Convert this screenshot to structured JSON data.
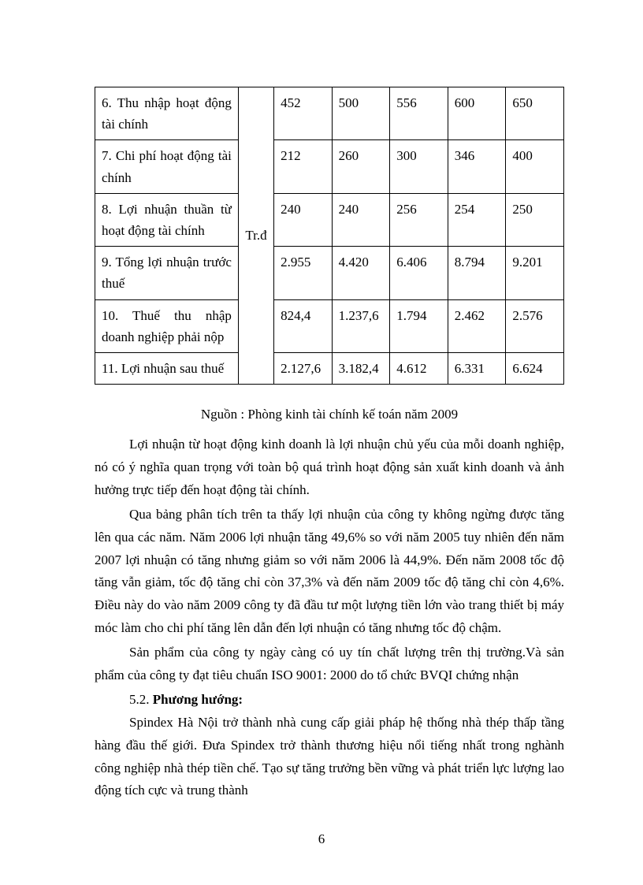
{
  "table": {
    "unit": "Tr.đ",
    "rows": [
      {
        "label": "6. Thu nhập hoạt động tài chính",
        "values": [
          "452",
          "500",
          "556",
          "600",
          "650"
        ]
      },
      {
        "label": "7. Chi phí hoạt động tài chính",
        "values": [
          "212",
          "260",
          "300",
          "346",
          "400"
        ]
      },
      {
        "label": "8. Lợi nhuận thuần từ hoạt động tài chính",
        "values": [
          "240",
          "240",
          "256",
          "254",
          "250"
        ]
      },
      {
        "label": "9. Tổng lợi nhuận trước thuế",
        "values": [
          "2.955",
          "4.420",
          "6.406",
          "8.794",
          "9.201"
        ]
      },
      {
        "label": "10. Thuế thu nhập doanh nghiệp phải nộp",
        "values": [
          "824,4",
          "1.237,6",
          "1.794",
          "2.462",
          "2.576"
        ]
      },
      {
        "label": "11. Lợi nhuận sau thuế",
        "values": [
          "2.127,6",
          "3.182,4",
          "4.612",
          "6.331",
          "6.624"
        ]
      }
    ]
  },
  "source": "Nguồn : Phòng kinh tài chính kế toán năm 2009",
  "para1": "Lợi nhuận từ hoạt động kinh doanh là lợi nhuận chủ yếu của mỗi doanh nghiệp, nó có ý nghĩa quan trọng với toàn bộ quá trình hoạt động sản xuất kinh doanh và ảnh hưởng trực tiếp đến hoạt động tài chính.",
  "para2": "Qua bảng phân tích trên ta thấy lợi nhuận của công ty không ngừng được tăng lên qua các năm. Năm 2006 lợi nhuận tăng 49,6% so với năm 2005 tuy nhiên đến năm 2007 lợi nhuận có tăng nhưng giảm so với năm 2006 là 44,9%. Đến năm 2008 tốc độ tăng vẫn giảm, tốc độ tăng chỉ còn 37,3% và đến năm 2009 tốc độ tăng chỉ còn 4,6%. Điều này do vào năm 2009 công ty đã đầu tư một lượng tiền lớn vào trang thiết bị máy móc làm cho chi phí tăng lên dẫn đến lợi nhuận có tăng nhưng tốc độ chậm.",
  "para3": "Sản phẩm của công ty ngày càng có uy tín chất lượng trên thị trường.Và sản phẩm của công ty đạt tiêu chuẩn ISO 9001: 2000 do tổ chức BVQI chứng nhận",
  "section_num": "5.2.",
  "section_title": "Phương hướng:",
  "para4": "Spindex Hà Nội trở thành nhà cung cấp giải pháp hệ thống nhà thép thấp tầng hàng đầu thế giới. Đưa Spindex trở thành thương hiệu nổi tiếng nhất trong nghành công nghiệp nhà thép tiền chế. Tạo sự tăng trưởng bền vững và phát triển lực lượng lao động tích cực và trung thành",
  "page": "6"
}
